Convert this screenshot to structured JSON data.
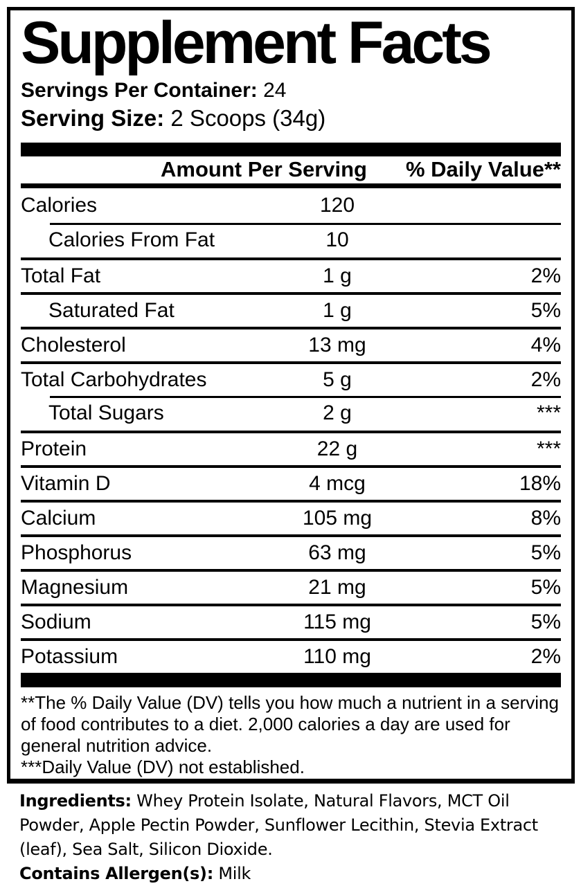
{
  "colors": {
    "text": "#000000",
    "background": "#ffffff"
  },
  "title": "Supplement Facts",
  "servings_per_container": {
    "label": "Servings Per Container:",
    "value": "24"
  },
  "serving_size": {
    "label": "Serving Size:",
    "value": "2 Scoops (34g)"
  },
  "table": {
    "columns": {
      "amount": "Amount Per Serving",
      "daily_value": "% Daily Value**"
    },
    "rows": [
      {
        "name": "Calories",
        "amount": "120",
        "dv": "",
        "indent": false,
        "rule": "none"
      },
      {
        "name": "Calories From Fat",
        "amount": "10",
        "dv": "",
        "indent": true,
        "rule": "indent"
      },
      {
        "name": "Total Fat",
        "amount": "1 g",
        "dv": "2%",
        "indent": false,
        "rule": "full"
      },
      {
        "name": "Saturated Fat",
        "amount": "1 g",
        "dv": "5%",
        "indent": true,
        "rule": "full"
      },
      {
        "name": "Cholesterol",
        "amount": "13 mg",
        "dv": "4%",
        "indent": false,
        "rule": "full"
      },
      {
        "name": "Total Carbohydrates",
        "amount": "5 g",
        "dv": "2%",
        "indent": false,
        "rule": "full"
      },
      {
        "name": "Total Sugars",
        "amount": "2 g",
        "dv": "***",
        "indent": true,
        "rule": "indent"
      },
      {
        "name": "Protein",
        "amount": "22 g",
        "dv": "***",
        "indent": false,
        "rule": "full"
      },
      {
        "name": "Vitamin D",
        "amount": "4 mcg",
        "dv": "18%",
        "indent": false,
        "rule": "full"
      },
      {
        "name": "Calcium",
        "amount": "105 mg",
        "dv": "8%",
        "indent": false,
        "rule": "full"
      },
      {
        "name": "Phosphorus",
        "amount": "63 mg",
        "dv": "5%",
        "indent": false,
        "rule": "full"
      },
      {
        "name": "Magnesium",
        "amount": "21 mg",
        "dv": "5%",
        "indent": false,
        "rule": "full"
      },
      {
        "name": "Sodium",
        "amount": "115 mg",
        "dv": "5%",
        "indent": false,
        "rule": "full"
      },
      {
        "name": "Potassium",
        "amount": "110 mg",
        "dv": "2%",
        "indent": false,
        "rule": "full"
      }
    ]
  },
  "footnotes": {
    "daily_value": "**The % Daily Value (DV) tells you how much a nutrient in a serving of food contributes to a diet. 2,000 calories a day are used for general nutrition advice.",
    "not_established": "***Daily Value (DV) not established."
  },
  "ingredients": {
    "label": "Ingredients:",
    "text": " Whey Protein Isolate, Natural Flavors, MCT Oil Powder, Apple Pectin Powder, Sunflower Lecithin, Stevia Extract (leaf), Sea Salt, Silicon Dioxide."
  },
  "allergens": {
    "label": "Contains Allergen(s):",
    "value": " Milk"
  }
}
